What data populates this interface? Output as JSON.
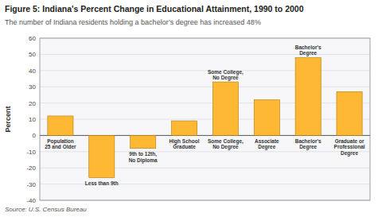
{
  "chart_data": {
    "type": "bar",
    "title": "Figure 5: Indiana's Percent Change in Educational Attainment, 1990 to 2000",
    "subtitle": "The number of Indiana residents holding a bachelor’s degree has increased 48%",
    "y_label": "Percent",
    "source": "Source: U.S. Census Bureau",
    "categories": [
      "Population\n25 and Older",
      "Less than 9th",
      "9th to 12th,\nNo Diploma",
      "High School\nGraduate",
      "Some College,\nNo Degree",
      "Associate\nDegree",
      "Bachelor's\nDegree",
      "Graduate or\nProfessional\nDegree"
    ],
    "values": [
      12,
      -26,
      -8,
      9,
      33,
      22,
      48,
      27
    ],
    "color": "#FFB833",
    "ylim": [
      -40,
      60
    ],
    "yticks": [
      -40,
      -30,
      -20,
      -10,
      0,
      10,
      20,
      30,
      40,
      50,
      60
    ],
    "grid": true,
    "annotations": [
      {
        "text": "Some College,\nNo Degree",
        "x": "Some College,\nNo Degree"
      },
      {
        "text": "Bachelor's\nDegree",
        "x": "Bachelor's\nDegree"
      }
    ]
  }
}
